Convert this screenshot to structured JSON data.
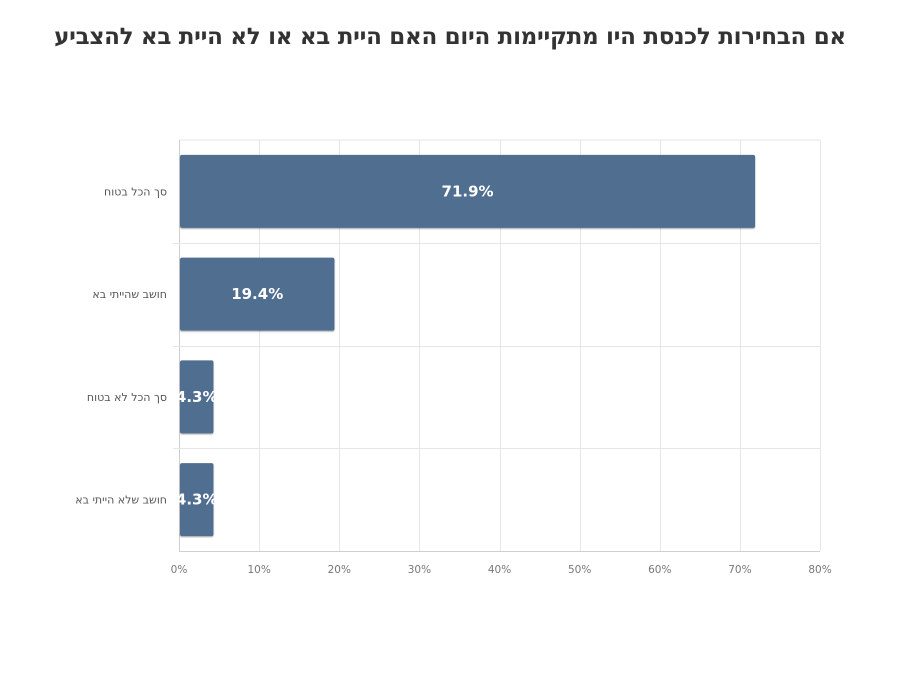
{
  "chart_data": {
    "type": "bar",
    "orientation": "horizontal",
    "title": "אם הבחירות לכנסת היו מתקיימות היום האם היית בא או לא היית בא להצביע",
    "categories": [
      "סך הכל בטוח",
      "חושב שהייתי בא",
      "סך הכל לא בטוח",
      "חושב שלא הייתי בא"
    ],
    "values": [
      71.9,
      19.4,
      4.3,
      4.3
    ],
    "data_labels": [
      "71.9%",
      "19.4%",
      "4.3%",
      "4.3%"
    ],
    "xlim": [
      0,
      80
    ],
    "x_ticks": [
      0,
      10,
      20,
      30,
      40,
      50,
      60,
      70,
      80
    ],
    "x_tick_labels": [
      "0%",
      "10%",
      "20%",
      "30%",
      "40%",
      "50%",
      "60%",
      "70%",
      "80%"
    ],
    "bar_color": "#506e90",
    "grid": true,
    "legend": "none"
  }
}
